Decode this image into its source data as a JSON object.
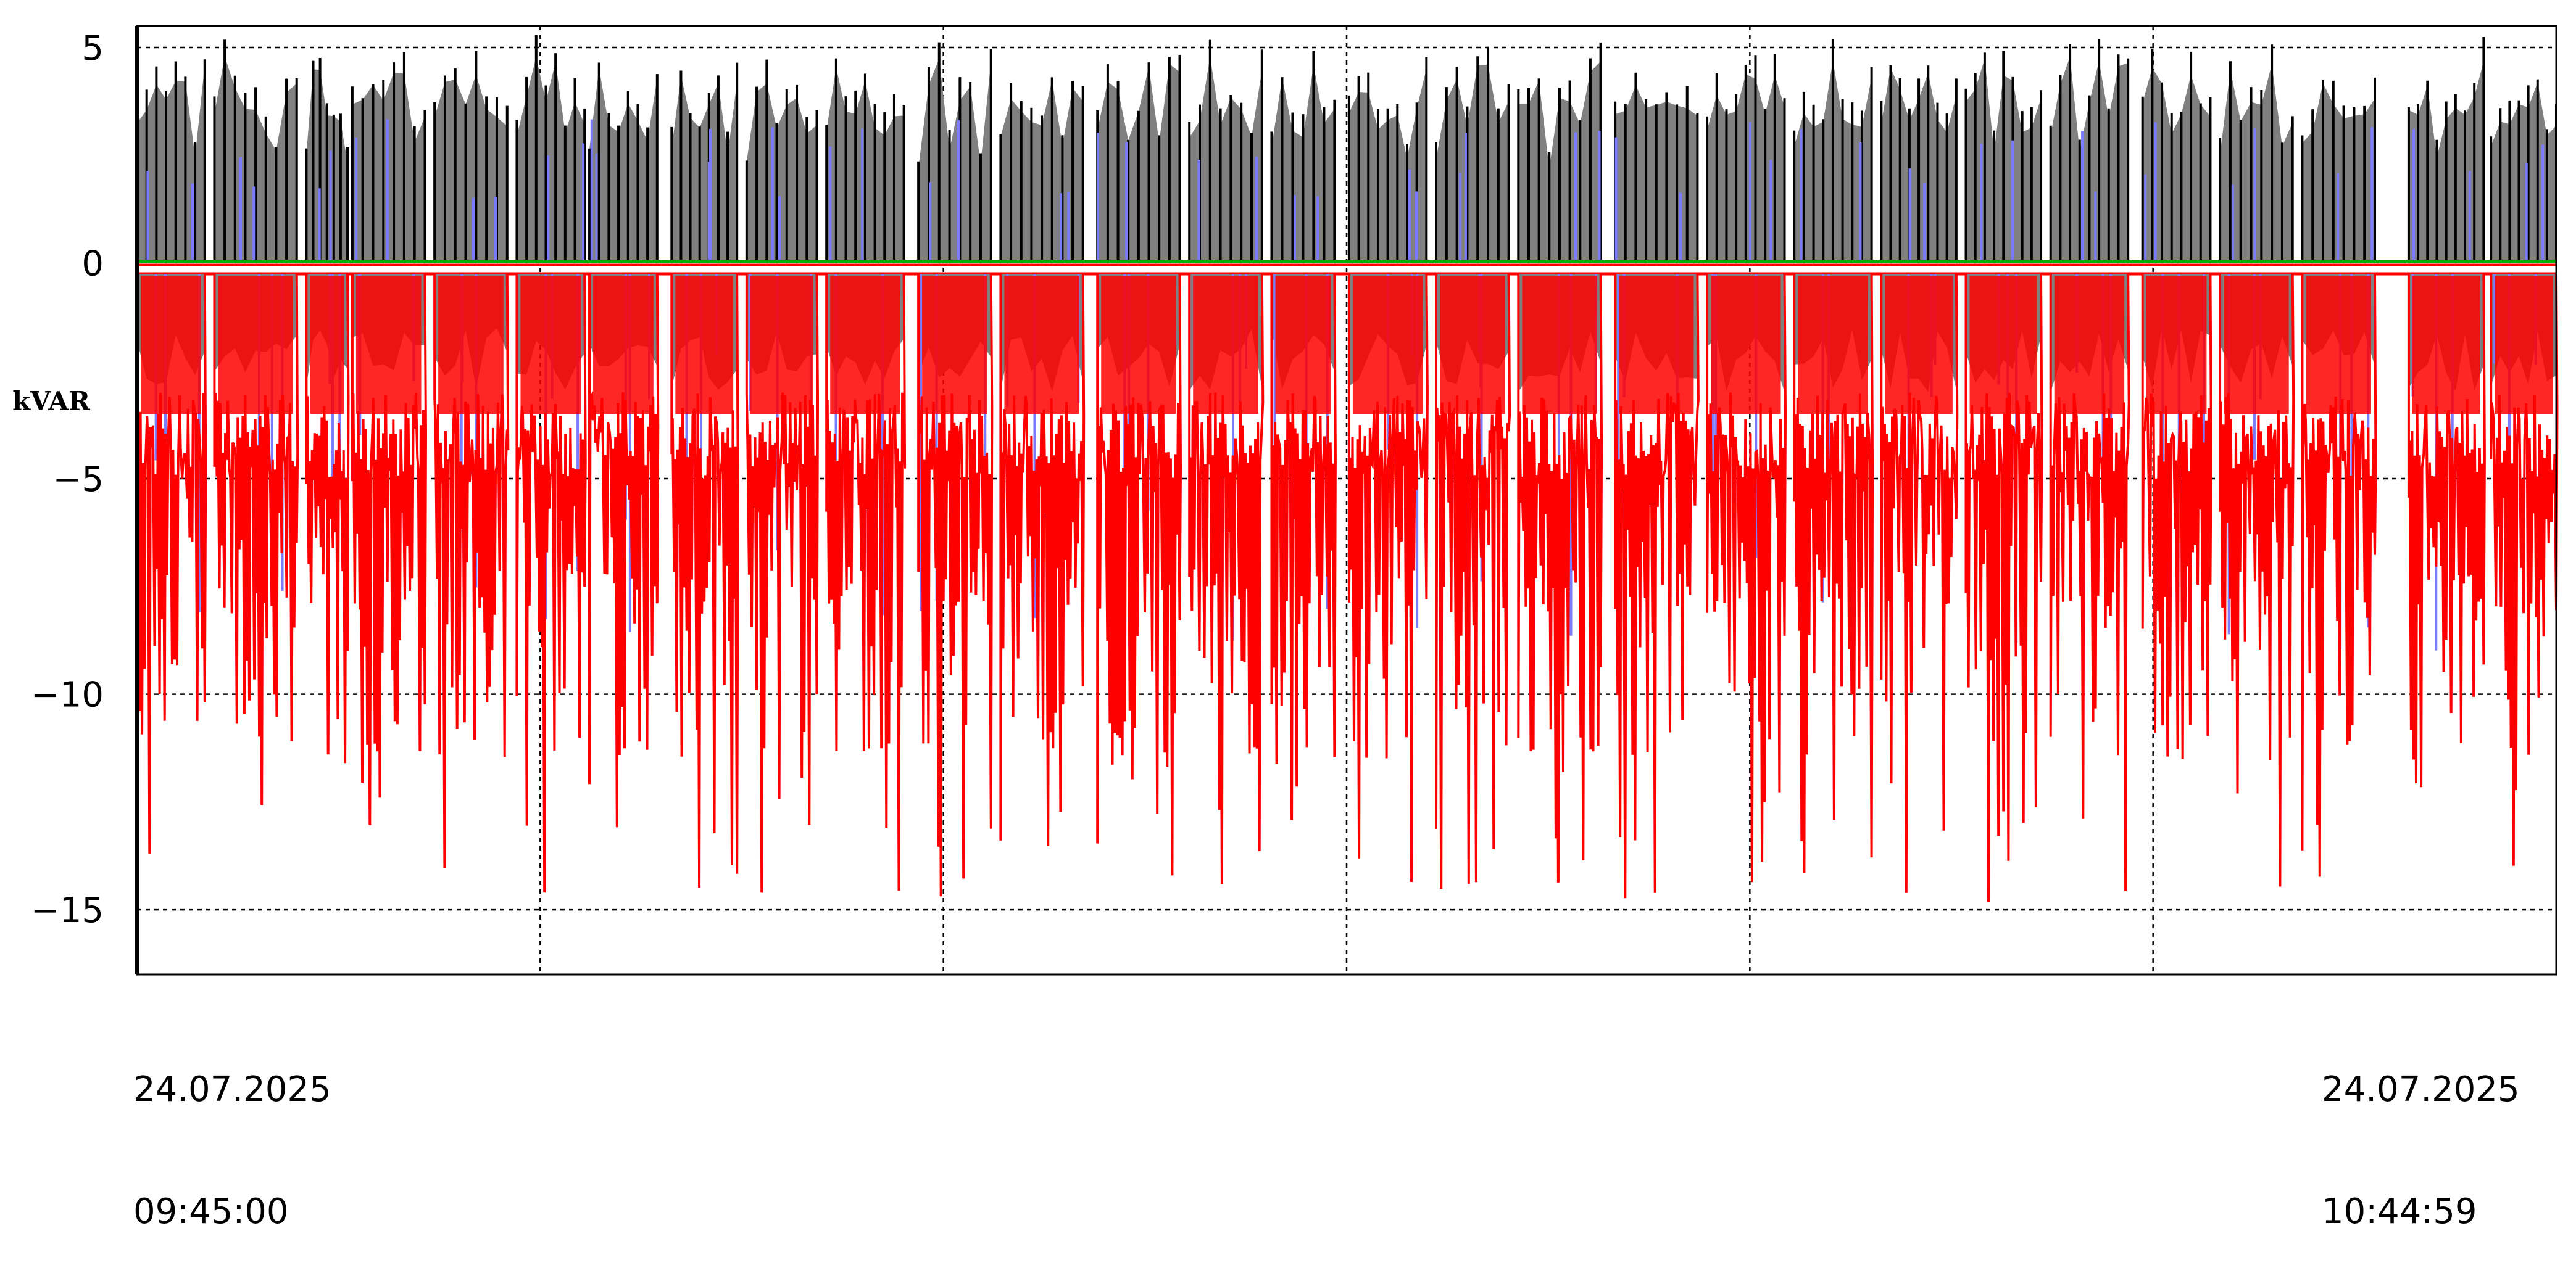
{
  "chart_data": {
    "type": "line",
    "title": "",
    "ylabel": "kVAR",
    "ylim": [
      -16.5,
      5.5
    ],
    "yticks": [
      5,
      0,
      -5,
      -10,
      -15
    ],
    "ytick_labels": [
      "5",
      "0",
      "−5",
      "−10",
      "−15"
    ],
    "grid": true,
    "x_start": {
      "date": "24.07.2025",
      "time": "09:45:00"
    },
    "x_end": {
      "date": "24.07.2025",
      "time": "10:44:59"
    },
    "x_gridlines": [
      "09:55",
      "10:05",
      "10:15",
      "10:25",
      "10:35"
    ],
    "colors": {
      "gray_series": "#808080",
      "blue_series": "#7b7bff",
      "red_series": "#ff0000",
      "green_series": "#00b000",
      "edge": "#000000"
    },
    "bursts": [
      {
        "start": 0.0,
        "end": 0.028
      },
      {
        "start": 0.032,
        "end": 0.066
      },
      {
        "start": 0.07,
        "end": 0.087
      },
      {
        "start": 0.089,
        "end": 0.119
      },
      {
        "start": 0.123,
        "end": 0.153
      },
      {
        "start": 0.157,
        "end": 0.185
      },
      {
        "start": 0.187,
        "end": 0.215
      },
      {
        "start": 0.221,
        "end": 0.248
      },
      {
        "start": 0.252,
        "end": 0.281
      },
      {
        "start": 0.285,
        "end": 0.317
      },
      {
        "start": 0.323,
        "end": 0.353
      },
      {
        "start": 0.357,
        "end": 0.391
      },
      {
        "start": 0.397,
        "end": 0.431
      },
      {
        "start": 0.435,
        "end": 0.465
      },
      {
        "start": 0.469,
        "end": 0.495
      },
      {
        "start": 0.501,
        "end": 0.533
      },
      {
        "start": 0.537,
        "end": 0.567
      },
      {
        "start": 0.571,
        "end": 0.605
      },
      {
        "start": 0.611,
        "end": 0.645
      },
      {
        "start": 0.649,
        "end": 0.681
      },
      {
        "start": 0.685,
        "end": 0.717
      },
      {
        "start": 0.721,
        "end": 0.752
      },
      {
        "start": 0.756,
        "end": 0.787
      },
      {
        "start": 0.791,
        "end": 0.823
      },
      {
        "start": 0.829,
        "end": 0.857
      },
      {
        "start": 0.861,
        "end": 0.891
      },
      {
        "start": 0.895,
        "end": 0.925
      },
      {
        "start": 0.939,
        "end": 0.97
      },
      {
        "start": 0.973,
        "end": 1.0
      }
    ],
    "gray_level_max": 4.8,
    "red_level_min": -14.9
  }
}
